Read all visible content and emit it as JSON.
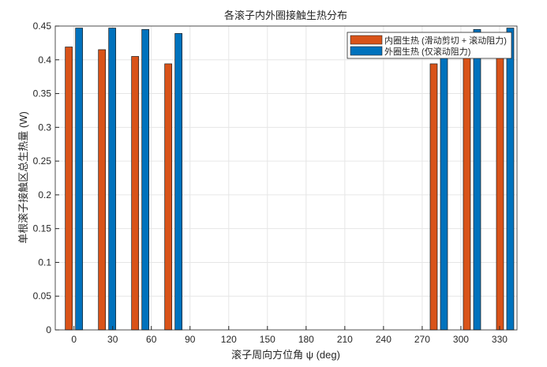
{
  "chart_data": {
    "type": "bar",
    "title": "各滚子内外圈接触生热分布",
    "xlabel": "滚子周向方位角 ψ (deg)",
    "ylabel": "单根滚子接触区总生热量 (W)",
    "xlim": [
      -14.5,
      343.5
    ],
    "ylim": [
      0,
      0.45
    ],
    "xticks": [
      "0",
      "30",
      "60",
      "90",
      "120",
      "150",
      "180",
      "210",
      "240",
      "270",
      "300",
      "330"
    ],
    "yticks": [
      "0",
      "0.05",
      "0.1",
      "0.15",
      "0.2",
      "0.25",
      "0.3",
      "0.35",
      "0.4",
      "0.45"
    ],
    "grid": true,
    "legend_position": "top-right",
    "x": [
      0,
      25.7,
      51.4,
      77.1,
      282.9,
      308.6,
      334.3
    ],
    "series": [
      {
        "name": "内圈生热 (滑动剪切 + 滚动阻力)",
        "color": "#D95319",
        "values": [
          0.419,
          0.415,
          0.405,
          0.394,
          0.394,
          0.405,
          0.415
        ]
      },
      {
        "name": "外圈生热 (仅滚动阻力)",
        "color": "#0072BD",
        "values": [
          0.447,
          0.447,
          0.445,
          0.439,
          0.439,
          0.445,
          0.447
        ]
      }
    ]
  }
}
